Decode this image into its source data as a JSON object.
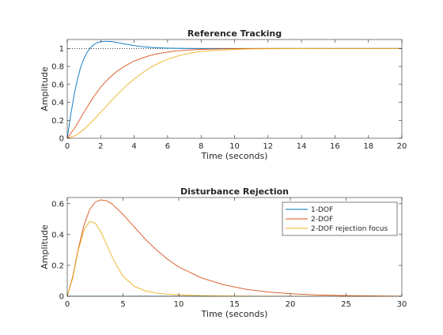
{
  "colors": {
    "one_dof": "#0072BD",
    "two_dof": "#D95319",
    "two_dof_rejection": "#EDB120",
    "axes": "#262626",
    "reference_line": "#000000"
  },
  "chart_data": [
    {
      "type": "line",
      "title": "Reference Tracking",
      "xlabel": "Time (seconds)",
      "ylabel": "Amplitude",
      "xlim": [
        0,
        20
      ],
      "ylim": [
        0,
        1.1
      ],
      "xticks": [
        0,
        2,
        4,
        6,
        8,
        10,
        12,
        14,
        16,
        18,
        20
      ],
      "xtick_labels": [
        "0",
        "2",
        "4",
        "6",
        "8",
        "10",
        "12",
        "14",
        "16",
        "18",
        "20"
      ],
      "yticks": [
        0,
        0.2,
        0.4,
        0.6,
        0.8,
        1
      ],
      "ytick_labels": [
        "0",
        "0.2",
        "0.4",
        "0.6",
        "0.8",
        "1"
      ],
      "reference_line": {
        "y": 1,
        "style": "dotted"
      },
      "grid": false,
      "legend": null,
      "series": [
        {
          "color_key": "one_dof",
          "x": [
            0,
            0.2,
            0.4,
            0.6,
            0.8,
            1.0,
            1.2,
            1.4,
            1.6,
            1.8,
            2.0,
            2.2,
            2.4,
            2.6,
            2.8,
            3.0,
            3.5,
            4.0,
            4.5,
            5.0,
            5.5,
            6.0,
            7.0,
            8.0,
            9.0,
            10.0,
            12.0,
            14.0,
            16.0,
            18.0,
            20.0
          ],
          "y": [
            0,
            0.25,
            0.47,
            0.65,
            0.79,
            0.89,
            0.96,
            1.01,
            1.045,
            1.065,
            1.075,
            1.08,
            1.08,
            1.078,
            1.073,
            1.066,
            1.048,
            1.032,
            1.02,
            1.012,
            1.007,
            1.004,
            1.001,
            1.0,
            1.0,
            1.0,
            1.0,
            1.0,
            1.0,
            1.0,
            1.0
          ]
        },
        {
          "color_key": "two_dof",
          "x": [
            0,
            0.5,
            1.0,
            1.5,
            2.0,
            2.5,
            3.0,
            3.5,
            4.0,
            4.5,
            5.0,
            5.5,
            6.0,
            6.5,
            7.0,
            7.5,
            8.0,
            9.0,
            10.0,
            11.0,
            12.0,
            14.0,
            16.0,
            18.0,
            20.0
          ],
          "y": [
            0,
            0.13,
            0.29,
            0.44,
            0.57,
            0.67,
            0.75,
            0.81,
            0.86,
            0.895,
            0.925,
            0.945,
            0.96,
            0.972,
            0.98,
            0.986,
            0.99,
            0.995,
            0.998,
            0.999,
            1.0,
            1.0,
            1.0,
            1.0,
            1.0
          ]
        },
        {
          "color_key": "two_dof_rejection",
          "x": [
            0,
            0.5,
            1.0,
            1.5,
            2.0,
            2.5,
            3.0,
            3.5,
            4.0,
            4.5,
            5.0,
            5.5,
            6.0,
            6.5,
            7.0,
            7.5,
            8.0,
            9.0,
            10.0,
            11.0,
            12.0,
            14.0,
            16.0,
            18.0,
            20.0
          ],
          "y": [
            0,
            0.03,
            0.1,
            0.19,
            0.29,
            0.39,
            0.49,
            0.58,
            0.66,
            0.73,
            0.79,
            0.84,
            0.88,
            0.91,
            0.935,
            0.953,
            0.966,
            0.982,
            0.99,
            0.995,
            0.997,
            0.999,
            1.0,
            1.0,
            1.0
          ]
        }
      ]
    },
    {
      "type": "line",
      "title": "Disturbance Rejection",
      "xlabel": "Time (seconds)",
      "ylabel": "Amplitude",
      "xlim": [
        0,
        30
      ],
      "ylim": [
        0,
        0.64
      ],
      "xticks": [
        0,
        5,
        10,
        15,
        20,
        25,
        30
      ],
      "xtick_labels": [
        "0",
        "5",
        "10",
        "15",
        "20",
        "25",
        "30"
      ],
      "yticks": [
        0,
        0.2,
        0.4,
        0.6
      ],
      "ytick_labels": [
        "0",
        "0.2",
        "0.4",
        "0.6"
      ],
      "reference_line": {
        "y": 0,
        "style": "dotted"
      },
      "grid": false,
      "legend": "top-right",
      "series": [
        {
          "name": "1-DOF",
          "color_key": "one_dof",
          "x": [
            0,
            30
          ],
          "y": [
            0,
            0
          ]
        },
        {
          "name": "2-DOF",
          "color_key": "two_dof",
          "x": [
            0,
            0.5,
            1.0,
            1.5,
            2.0,
            2.5,
            3.0,
            3.5,
            4.0,
            5.0,
            6.0,
            7.0,
            8.0,
            9.0,
            10.0,
            12.0,
            14.0,
            16.0,
            18.0,
            20.0,
            22.0,
            25.0,
            30.0
          ],
          "y": [
            0,
            0.13,
            0.31,
            0.46,
            0.56,
            0.61,
            0.625,
            0.62,
            0.6,
            0.53,
            0.45,
            0.37,
            0.3,
            0.24,
            0.19,
            0.12,
            0.075,
            0.046,
            0.028,
            0.017,
            0.01,
            0.004,
            0.001
          ]
        },
        {
          "name": "2-DOF rejection focus",
          "color_key": "two_dof_rejection",
          "x": [
            0,
            0.5,
            1.0,
            1.5,
            2.0,
            2.5,
            3.0,
            3.5,
            4.0,
            4.5,
            5.0,
            6.0,
            7.0,
            8.0,
            9.0,
            10.0,
            12.0,
            14.0,
            16.0,
            20.0,
            30.0
          ],
          "y": [
            0,
            0.12,
            0.3,
            0.43,
            0.485,
            0.475,
            0.42,
            0.34,
            0.26,
            0.19,
            0.13,
            0.065,
            0.035,
            0.02,
            0.013,
            0.009,
            0.004,
            0.002,
            0.001,
            0.0,
            0.0
          ]
        }
      ]
    }
  ]
}
